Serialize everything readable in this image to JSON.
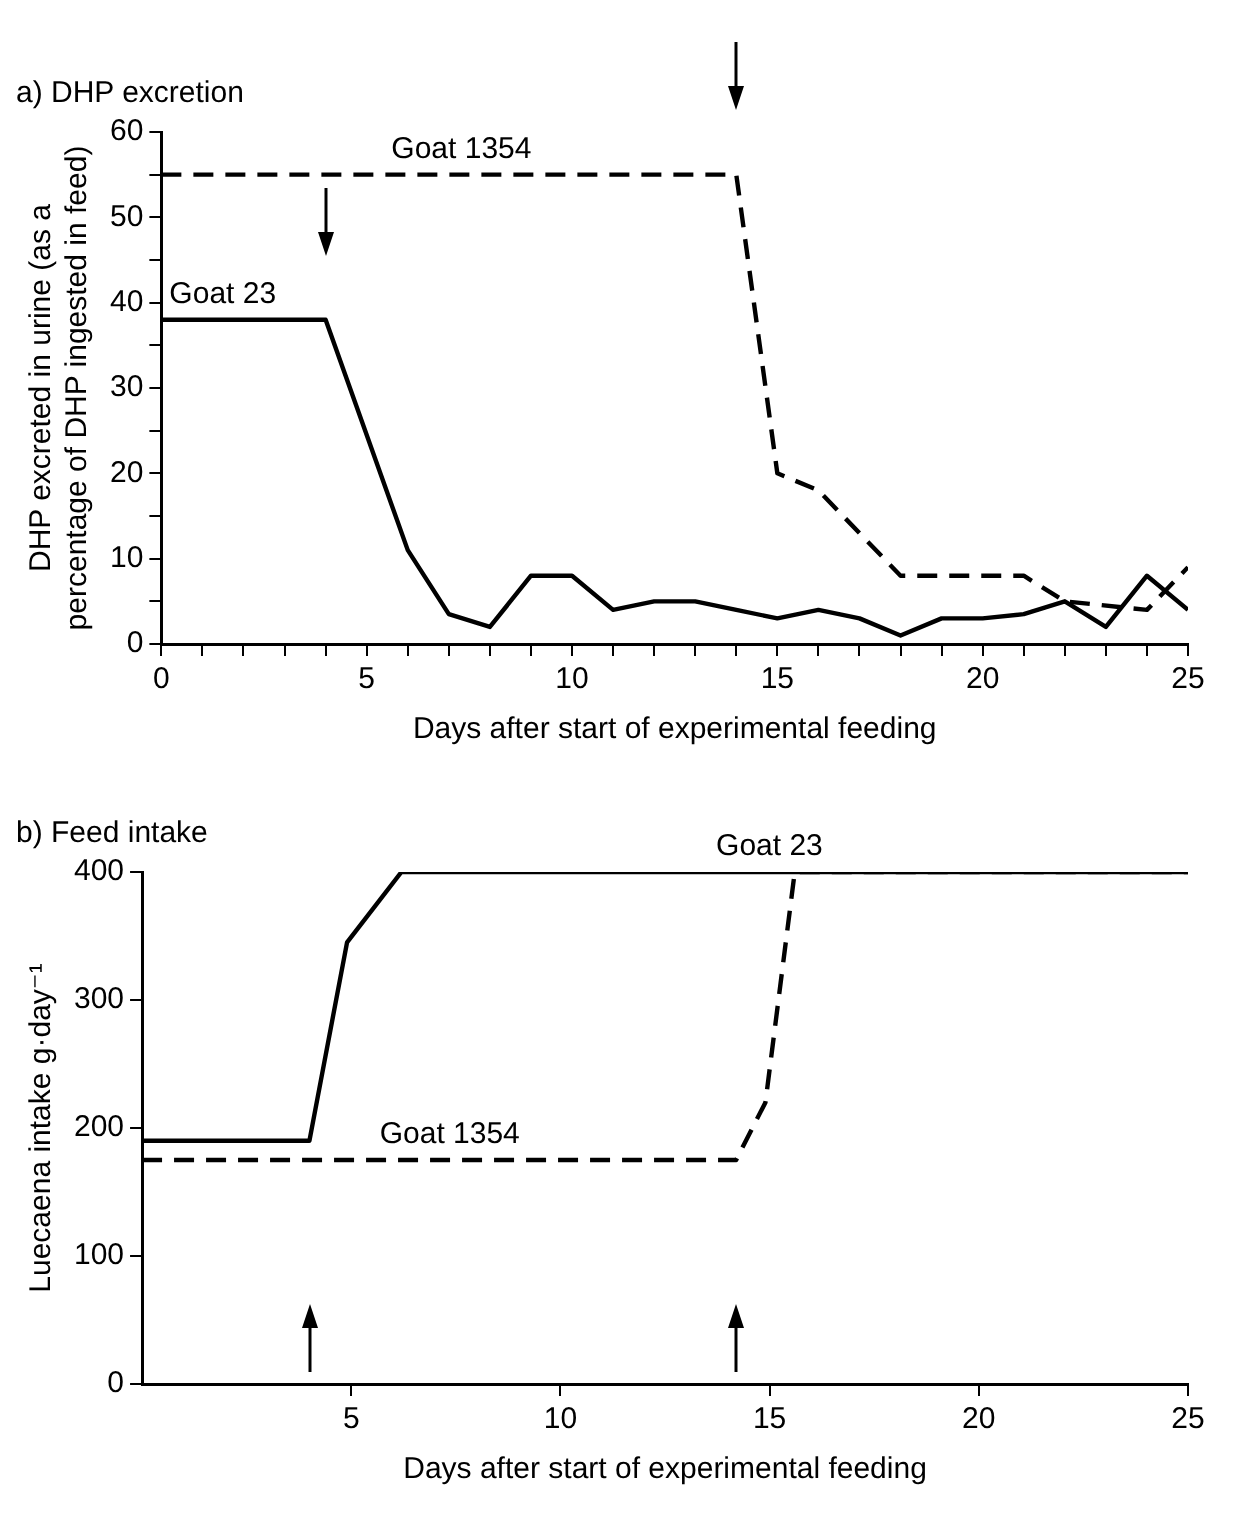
{
  "chart_data": [
    {
      "type": "line",
      "title": "a) DHP excretion",
      "xlabel": "Days after start of experimental feeding",
      "ylabel": "DHP excreted in urine (as a percentage of DHP ingested in feed)",
      "xlim": [
        0,
        25
      ],
      "ylim": [
        0,
        60
      ],
      "xticks": [
        0,
        {
          "value": 1,
          "label": null
        },
        {
          "value": 2,
          "label": null
        },
        {
          "value": 3,
          "label": null
        },
        {
          "value": 4,
          "label": null
        },
        5,
        {
          "value": 6,
          "label": null
        },
        {
          "value": 7,
          "label": null
        },
        {
          "value": 8,
          "label": null
        },
        {
          "value": 9,
          "label": null
        },
        10,
        {
          "value": 11,
          "label": null
        },
        {
          "value": 12,
          "label": null
        },
        {
          "value": 13,
          "label": null
        },
        {
          "value": 14,
          "label": null
        },
        15,
        {
          "value": 16,
          "label": null
        },
        {
          "value": 17,
          "label": null
        },
        {
          "value": 18,
          "label": null
        },
        {
          "value": 19,
          "label": null
        },
        20,
        {
          "value": 21,
          "label": null
        },
        {
          "value": 22,
          "label": null
        },
        {
          "value": 23,
          "label": null
        },
        {
          "value": 24,
          "label": null
        },
        25
      ],
      "yticks": [
        0,
        {
          "value": 5,
          "label": null
        },
        10,
        {
          "value": 15,
          "label": null
        },
        20,
        {
          "value": 25,
          "label": null
        },
        30,
        {
          "value": 35,
          "label": null
        },
        40,
        {
          "value": 45,
          "label": null
        },
        50,
        {
          "value": 55,
          "label": null
        },
        60
      ],
      "grid": false,
      "legend": false,
      "marker": "none",
      "series": [
        {
          "name": "Goat 1354",
          "color": "#000000",
          "line_style": "dashed",
          "x": [
            0,
            14,
            15,
            16,
            18,
            21,
            22,
            24,
            25
          ],
          "values": [
            55,
            55,
            20,
            18,
            8,
            8,
            5,
            4,
            9
          ]
        },
        {
          "name": "Goat 23",
          "color": "#000000",
          "line_style": "solid",
          "x": [
            0,
            4,
            6,
            7,
            8,
            9,
            10,
            11,
            12,
            13,
            14,
            15,
            16,
            17,
            18,
            19,
            20,
            21,
            22,
            23,
            24,
            25
          ],
          "values": [
            38,
            38,
            11,
            3.5,
            2,
            8,
            8,
            4,
            5,
            5,
            4,
            3,
            4,
            3,
            1,
            3,
            3,
            3.5,
            5,
            2,
            8,
            4
          ]
        }
      ]
    },
    {
      "type": "line",
      "title": "b) Feed intake",
      "xlabel": "Days after start of experimental feeding",
      "ylabel": "Luecaena intake g·day⁻¹",
      "xlim": [
        0,
        25
      ],
      "ylim": [
        0,
        400
      ],
      "xticks": [
        5,
        10,
        15,
        20,
        25
      ],
      "yticks": [
        0,
        100,
        200,
        300,
        400
      ],
      "grid": false,
      "legend": false,
      "marker": "none",
      "series": [
        {
          "name": "Goat 23",
          "color": "#000000",
          "line_style": "solid",
          "x": [
            0,
            4,
            4.9,
            6.2,
            25
          ],
          "values": [
            190,
            190,
            345,
            400,
            400
          ]
        },
        {
          "name": "Goat 1354",
          "color": "#000000",
          "line_style": "dashed",
          "x": [
            0,
            14.2,
            14.9,
            15.6,
            25
          ],
          "values": [
            175,
            175,
            220,
            400,
            400
          ]
        }
      ]
    }
  ]
}
